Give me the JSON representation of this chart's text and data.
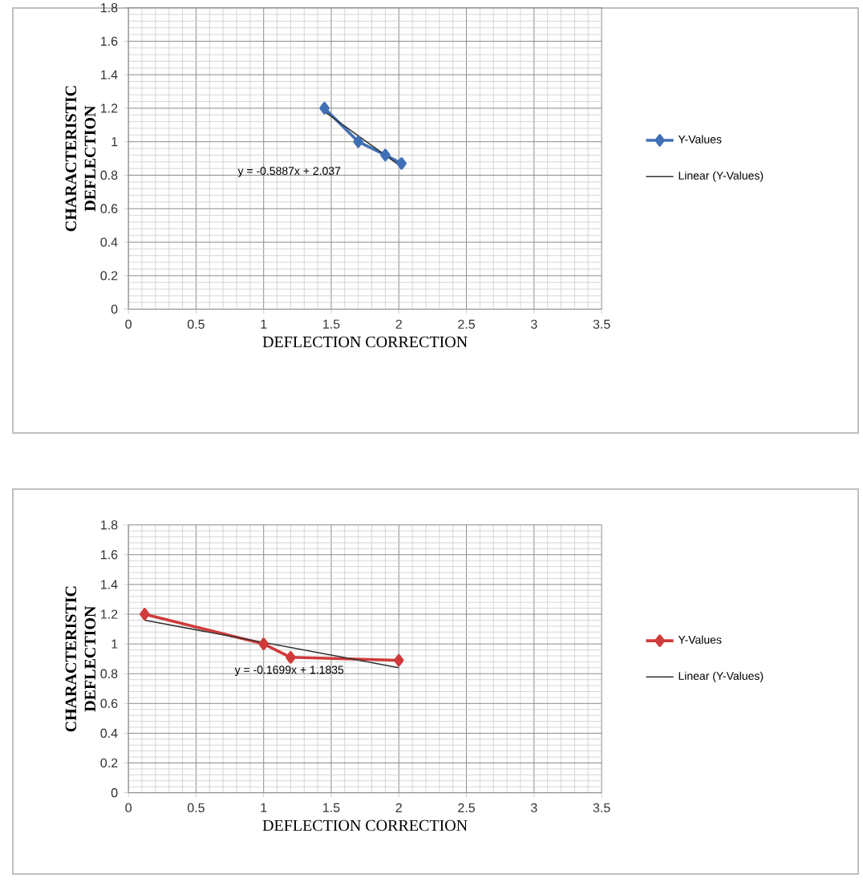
{
  "chart_data": [
    {
      "type": "line",
      "xlabel": "DEFLECTION CORRECTION",
      "ylabel": "CHARACTERISTIC DEFLECTION",
      "xlim": [
        0,
        3.5
      ],
      "ylim": [
        0,
        1.8
      ],
      "xticks": [
        0,
        0.5,
        1,
        1.5,
        2,
        2.5,
        3,
        3.5
      ],
      "yticks": [
        0,
        0.2,
        0.4,
        0.6,
        0.8,
        1,
        1.2,
        1.4,
        1.6,
        1.8
      ],
      "grid": true,
      "legend": "right",
      "line_style": "solid",
      "annotations": [
        "y = -0.5887x + 2.037"
      ],
      "series": [
        {
          "name": "Y-Values",
          "color": "#3f6fb5",
          "marker": "diamond",
          "x": [
            1.45,
            1.7,
            1.9,
            2.02
          ],
          "values": [
            1.2,
            1.0,
            0.92,
            0.87
          ]
        },
        {
          "name": "Linear (Y-Values)",
          "color": "#333333",
          "marker": "none",
          "x": [
            1.45,
            2.02
          ],
          "values": [
            1.18,
            0.85
          ]
        }
      ]
    },
    {
      "type": "line",
      "xlabel": "DEFLECTION CORRECTION",
      "ylabel": "CHARACTERISTIC DEFLECTION",
      "xlim": [
        0,
        3.5
      ],
      "ylim": [
        0,
        1.8
      ],
      "xticks": [
        0,
        0.5,
        1,
        1.5,
        2,
        2.5,
        3,
        3.5
      ],
      "yticks": [
        0,
        0.2,
        0.4,
        0.6,
        0.8,
        1,
        1.2,
        1.4,
        1.6,
        1.8
      ],
      "grid": true,
      "legend": "right",
      "line_style": "solid",
      "annotations": [
        "y = -0.1699x + 1.1835"
      ],
      "series": [
        {
          "name": "Y-Values",
          "color": "#d03a3a",
          "marker": "diamond",
          "x": [
            0.12,
            1.0,
            1.2,
            2.0
          ],
          "values": [
            1.2,
            1.0,
            0.91,
            0.89
          ]
        },
        {
          "name": "Linear (Y-Values)",
          "color": "#333333",
          "marker": "none",
          "x": [
            0.12,
            2.0
          ],
          "values": [
            1.16,
            0.84
          ]
        }
      ]
    }
  ]
}
